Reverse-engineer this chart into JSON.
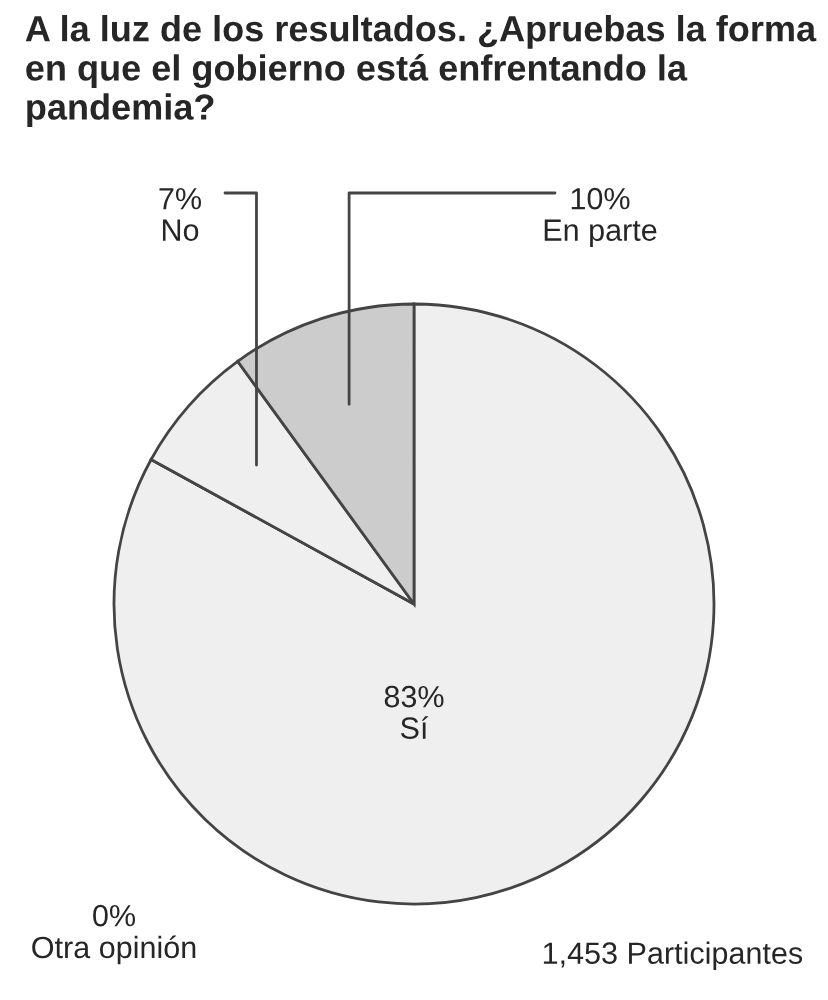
{
  "chart_data": {
    "type": "pie",
    "title": "A la luz de los resultados. ¿Apruebas la forma en que el gobierno está enfrentando la pandemia?",
    "categories": [
      "Sí",
      "Otra opinión",
      "No",
      "En parte"
    ],
    "values": [
      83,
      0,
      7,
      10
    ],
    "colors": [
      "#efefef",
      "#efefef",
      "#efefef",
      "#cccccc"
    ],
    "value_labels": [
      "83%",
      "0%",
      "7%",
      "10%"
    ],
    "annotations": [
      "1,453 Participantes"
    ]
  }
}
